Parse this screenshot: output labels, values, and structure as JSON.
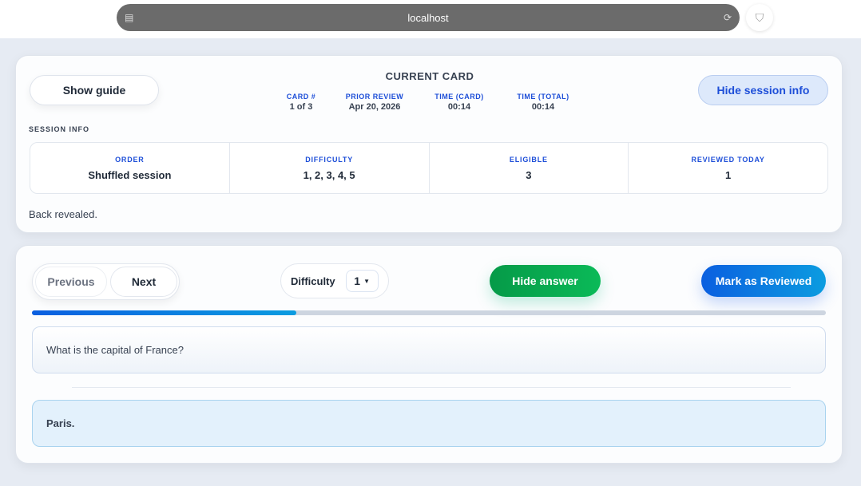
{
  "browser": {
    "url": "localhost"
  },
  "header": {
    "show_guide": "Show guide",
    "title": "CURRENT CARD",
    "hide_session": "Hide session info",
    "meta": [
      {
        "label": "CARD #",
        "value": "1 of 3"
      },
      {
        "label": "PRIOR REVIEW",
        "value": "Apr 20, 2026"
      },
      {
        "label": "TIME (CARD)",
        "value": "00:14"
      },
      {
        "label": "TIME (TOTAL)",
        "value": "00:14"
      }
    ]
  },
  "session": {
    "label": "SESSION INFO",
    "cells": [
      {
        "label": "ORDER",
        "value": "Shuffled session"
      },
      {
        "label": "DIFFICULTY",
        "value": "1, 2, 3, 4, 5"
      },
      {
        "label": "ELIGIBLE",
        "value": "3"
      },
      {
        "label": "REVIEWED TODAY",
        "value": "1"
      }
    ],
    "status": "Back revealed."
  },
  "controls": {
    "previous": "Previous",
    "next": "Next",
    "difficulty_label": "Difficulty",
    "difficulty_value": "1",
    "hide_answer": "Hide answer",
    "mark_reviewed": "Mark as Reviewed",
    "progress": 0.333
  },
  "card": {
    "question": "What is the capital of France?",
    "answer": "Paris."
  }
}
